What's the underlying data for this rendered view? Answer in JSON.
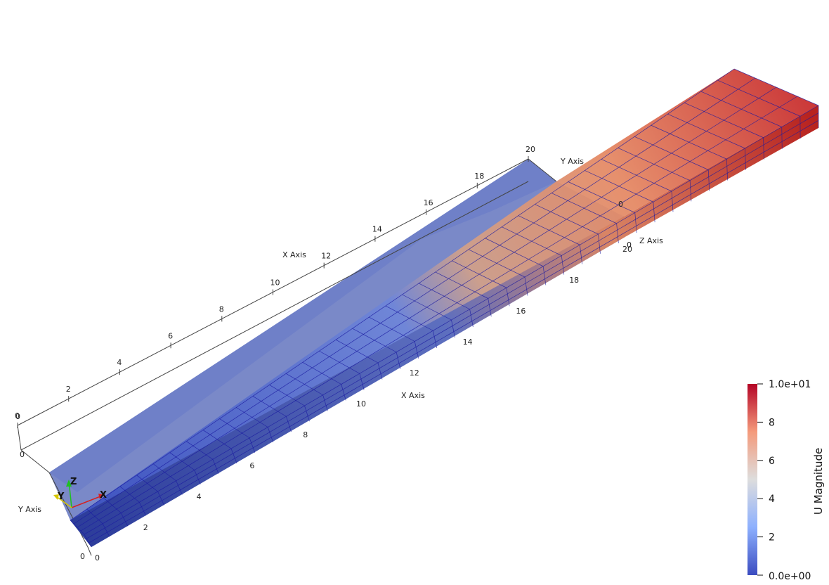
{
  "viewport": {
    "background": "#ffffff",
    "mesh_line_color": "#1a1aa0"
  },
  "orientation_triad": {
    "x_label": "X",
    "y_label": "Y",
    "z_label": "Z",
    "x_color": "#d62020",
    "y_color": "#d6c600",
    "z_color": "#20c020"
  },
  "cube_axes": {
    "x_axis_title": "X Axis",
    "y_axis_title": "Y Axis",
    "z_axis_title": "Z Axis",
    "back_x_ticks": [
      "0",
      "2",
      "4",
      "6",
      "8",
      "10",
      "12",
      "14",
      "16",
      "18",
      "20"
    ],
    "front_x_ticks": [
      "2",
      "4",
      "6",
      "8",
      "10",
      "12",
      "14",
      "16",
      "18",
      "20"
    ],
    "corner_labels": {
      "far_corner_a": "0",
      "far_corner_b": "0",
      "far_left_zero": "0",
      "far_left_zero_b": "0",
      "near_zero_a": "0",
      "near_zero_b": "0",
      "right_zero": "0",
      "right_zero_b": "0"
    }
  },
  "color_bar": {
    "title": "U Magnitude",
    "max_label": "1.0e+01",
    "min_label": "0.0e+00",
    "ticks": [
      "8",
      "6",
      "4",
      "2"
    ],
    "color_low": "#3b4cc0",
    "color_mid": "#dddddd",
    "color_high": "#b40426"
  }
}
